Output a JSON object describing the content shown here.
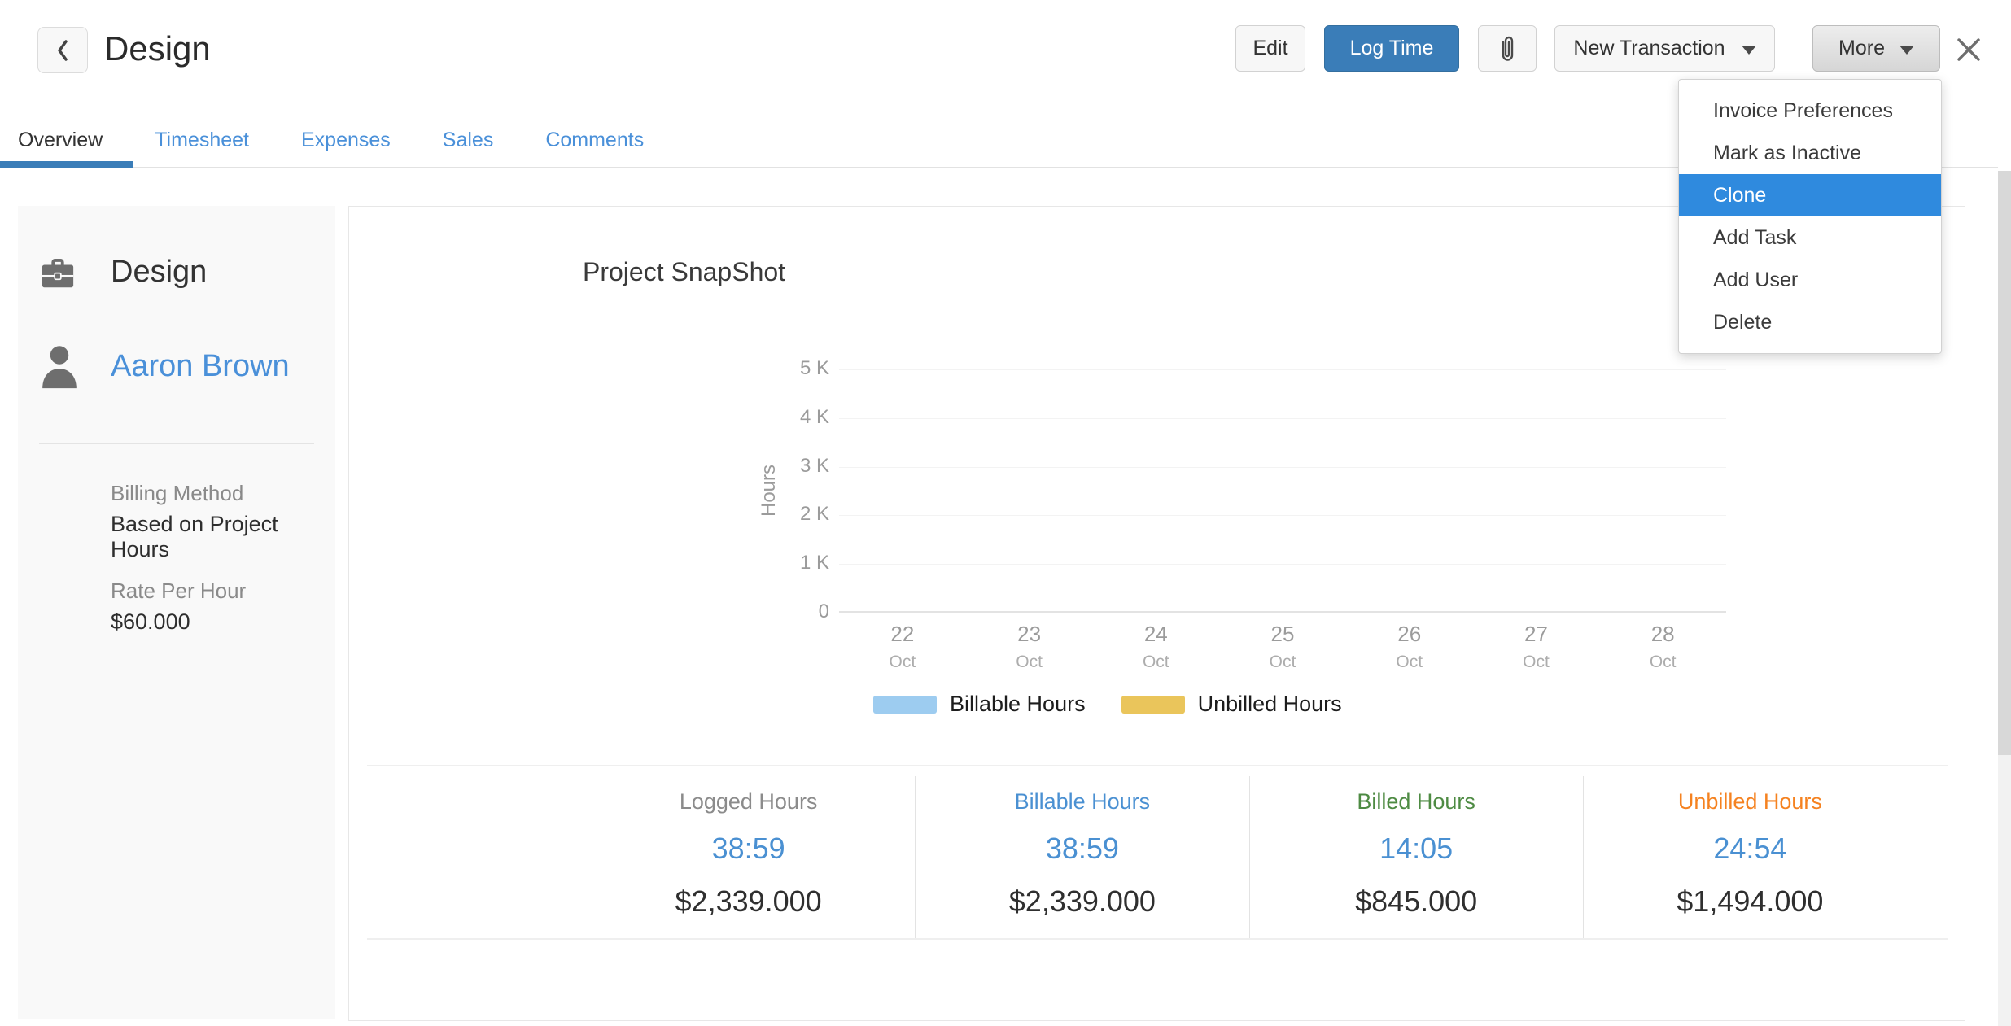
{
  "header": {
    "title": "Design",
    "edit_button": "Edit",
    "log_time_button": "Log Time",
    "new_transaction_button": "New Transaction",
    "more_button": "More"
  },
  "tabs": [
    {
      "label": "Overview",
      "active": true
    },
    {
      "label": "Timesheet",
      "active": false
    },
    {
      "label": "Expenses",
      "active": false
    },
    {
      "label": "Sales",
      "active": false
    },
    {
      "label": "Comments",
      "active": false
    }
  ],
  "more_menu": {
    "highlight_color": "#2f8ade",
    "items": [
      {
        "label": "Invoice Preferences",
        "highlighted": false
      },
      {
        "label": "Mark as Inactive",
        "highlighted": false
      },
      {
        "label": "Clone",
        "highlighted": true
      },
      {
        "label": "Add Task",
        "highlighted": false
      },
      {
        "label": "Add User",
        "highlighted": false
      },
      {
        "label": "Delete",
        "highlighted": false
      }
    ]
  },
  "sidebar": {
    "project_name": "Design",
    "manager_name": "Aaron Brown",
    "billing_method_label": "Billing Method",
    "billing_method_value": "Based on Project Hours",
    "rate_label": "Rate Per Hour",
    "rate_value": "$60.000"
  },
  "snapshot": {
    "title": "Project SnapShot",
    "hours_color": "#4a90d2",
    "stats": [
      {
        "label": "Logged Hours",
        "hours": "38:59",
        "amount": "$2,339.000",
        "label_color": "#8b8b8b"
      },
      {
        "label": "Billable Hours",
        "hours": "38:59",
        "amount": "$2,339.000",
        "label_color": "#4a90d2"
      },
      {
        "label": "Billed Hours",
        "hours": "14:05",
        "amount": "$845.000",
        "label_color": "#4e8b43"
      },
      {
        "label": "Unbilled Hours",
        "hours": "24:54",
        "amount": "$1,494.000",
        "label_color": "#f58220"
      }
    ]
  },
  "chart_data": {
    "type": "bar",
    "title": "Project SnapShot",
    "xlabel": "",
    "ylabel": "Hours",
    "ylim": [
      0,
      5000
    ],
    "grid": true,
    "legend_position": "bottom",
    "yticks": [
      {
        "value": 0,
        "label": "0"
      },
      {
        "value": 1000,
        "label": "1 K"
      },
      {
        "value": 2000,
        "label": "2 K"
      },
      {
        "value": 3000,
        "label": "3 K"
      },
      {
        "value": 4000,
        "label": "4 K"
      },
      {
        "value": 5000,
        "label": "5 K"
      }
    ],
    "categories": [
      {
        "day": "22",
        "month": "Oct"
      },
      {
        "day": "23",
        "month": "Oct"
      },
      {
        "day": "24",
        "month": "Oct"
      },
      {
        "day": "25",
        "month": "Oct"
      },
      {
        "day": "26",
        "month": "Oct"
      },
      {
        "day": "27",
        "month": "Oct"
      },
      {
        "day": "28",
        "month": "Oct"
      }
    ],
    "series": [
      {
        "name": "Billable Hours",
        "color": "#9dccf0",
        "values": [
          0,
          0,
          0,
          0,
          0,
          0,
          0
        ]
      },
      {
        "name": "Unbilled Hours",
        "color": "#eac55b",
        "values": [
          0,
          0,
          0,
          0,
          0,
          0,
          0
        ]
      }
    ]
  }
}
